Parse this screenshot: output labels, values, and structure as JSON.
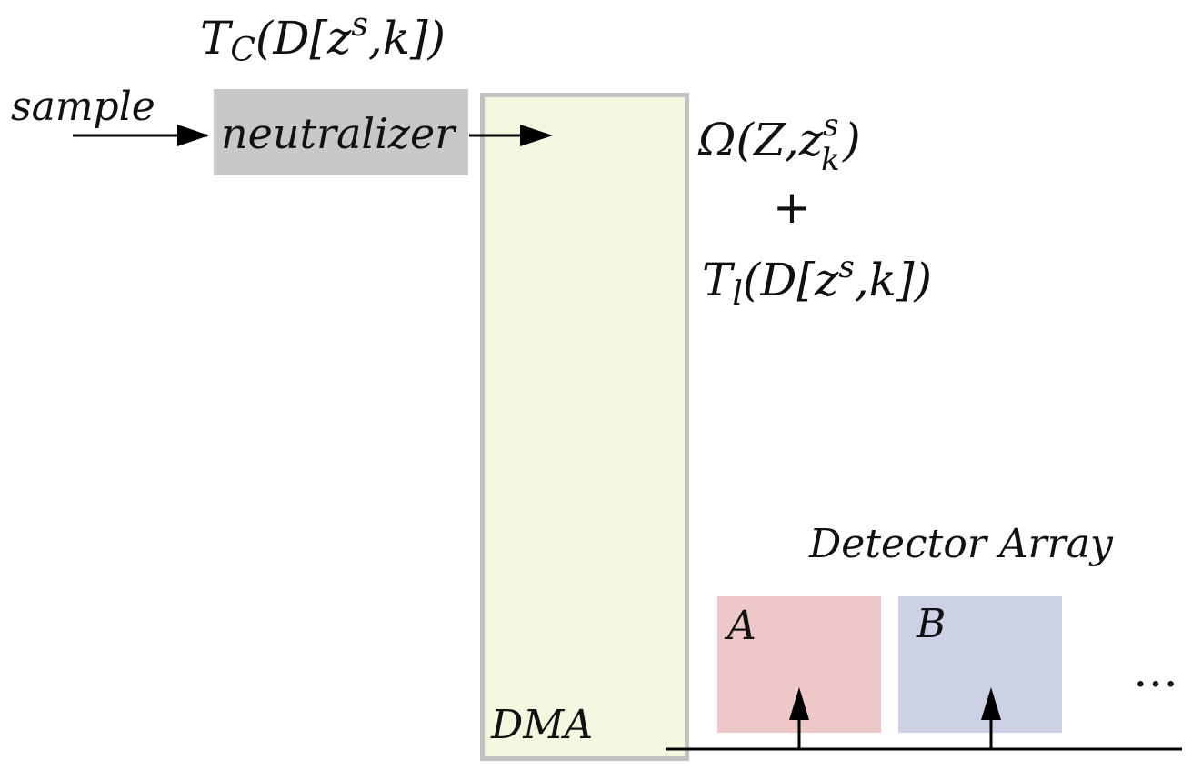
{
  "formula_top": {
    "T": "T",
    "T_sub": "C",
    "open": "(D[z",
    "sup": "s",
    "close": ",k])"
  },
  "input_label": "sample",
  "neutralizer_label": "neutralizer",
  "formula_right": {
    "omega": "Ω(Z,z",
    "omega_sup": "s",
    "omega_sub": "k",
    "omega_close": ")",
    "plus": "+",
    "T": "T",
    "T_sub": "l",
    "open": "(D[z",
    "sup": "s",
    "close": ",k])"
  },
  "dma_label": "DMA",
  "detector_array_label": "Detector Array",
  "detectors": [
    {
      "label": "A",
      "color": "#eec8c8"
    },
    {
      "label": "B",
      "color": "#cdd1e6"
    }
  ],
  "ellipsis": "…",
  "colors": {
    "neutralizer": "#c8c8c8",
    "dma_fill": "#f3f7df",
    "dma_border": "#c2c2c2",
    "line": "#000000"
  }
}
